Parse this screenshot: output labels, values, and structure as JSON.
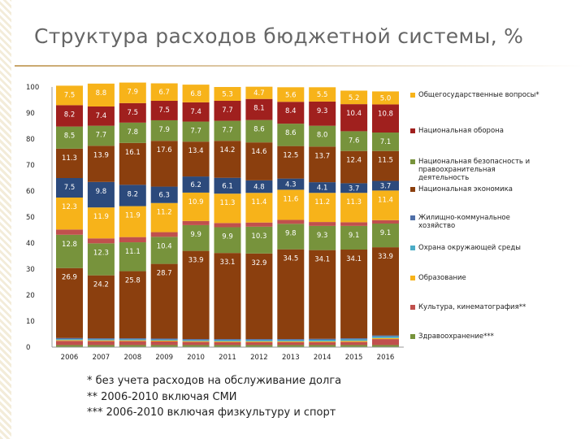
{
  "page": {
    "title": "Структура расходов бюджетной системы, %"
  },
  "chart_data": {
    "type": "bar",
    "stacked": true,
    "title": "Структура расходов бюджетной системы, %",
    "xlabel": "",
    "ylabel": "",
    "ylim": [
      0,
      100
    ],
    "yticks": [
      "0",
      "10",
      "20",
      "30",
      "40",
      "50",
      "60",
      "70",
      "80",
      "90",
      "100"
    ],
    "categories": [
      "2006",
      "2007",
      "2008",
      "2009",
      "2010",
      "2011",
      "2012",
      "2013",
      "2014",
      "2015",
      "2016"
    ],
    "legend_position": "right",
    "series": [
      {
        "name": "Здравоохранение***",
        "color": "#77933c",
        "labels": [
          "",
          "",
          "",
          "",
          "",
          "",
          "",
          "",
          "",
          "",
          ""
        ],
        "values": [
          0.8,
          0.8,
          0.8,
          0.8,
          0.8,
          0.8,
          0.8,
          0.8,
          0.8,
          0.8,
          0.8
        ]
      },
      {
        "name": "Культура, кинематография**",
        "color": "#c0504d",
        "labels": [
          "",
          "",
          "",
          "",
          "",
          "",
          "",
          "",
          "",
          "",
          ""
        ],
        "values": [
          1.6,
          1.5,
          1.5,
          1.4,
          1.2,
          1.1,
          1.1,
          1.1,
          1.1,
          1.2,
          2.3
        ]
      },
      {
        "name": "Образование",
        "color": "#f7b31a",
        "labels": [
          "",
          "",
          "",
          "",
          "",
          "",
          "",
          "",
          "",
          "",
          ""
        ],
        "values": [
          0.3,
          0.3,
          0.3,
          0.3,
          0.3,
          0.3,
          0.3,
          0.3,
          0.3,
          0.4,
          0.4
        ]
      },
      {
        "name": "Охрана окружающей среды",
        "color": "#4bacc6",
        "labels": [
          "",
          "",
          "",
          "",
          "",
          "",
          "",
          "",
          "",
          "",
          ""
        ],
        "values": [
          0.4,
          0.4,
          0.4,
          0.4,
          0.4,
          0.5,
          0.5,
          0.5,
          0.6,
          0.6,
          0.6
        ]
      },
      {
        "name": "Жилищно-коммунальное хозяйство",
        "color": "#4f6fa8",
        "labels": [
          "",
          "",
          "",
          "",
          "",
          "",
          "",
          "",
          "",
          "",
          ""
        ],
        "values": [
          0.4,
          0.4,
          0.4,
          0.4,
          0.4,
          0.4,
          0.4,
          0.4,
          0.4,
          0.4,
          0.4
        ]
      },
      {
        "name": "Социальная политика",
        "color": "#8b3f0e",
        "labels": [
          "26.9",
          "24.2",
          "25.8",
          "28.7",
          "33.9",
          "33.1",
          "32.9",
          "34.5",
          "34.1",
          "34.1",
          "33.9"
        ],
        "values": [
          26.9,
          24.2,
          25.8,
          28.7,
          33.9,
          33.1,
          32.9,
          34.5,
          34.1,
          34.1,
          33.9
        ]
      },
      {
        "name": "Здравоохранение (общ.)",
        "color": "#77933c",
        "labels": [
          "12.8",
          "12.3",
          "11.1",
          "10.4",
          "9.9",
          "9.9",
          "10.3",
          "9.8",
          "9.3",
          "9.1",
          "9.1"
        ],
        "values": [
          12.8,
          12.3,
          11.1,
          10.4,
          9.9,
          9.9,
          10.3,
          9.8,
          9.3,
          9.1,
          9.1
        ]
      },
      {
        "name": "Культура (общ.)",
        "color": "#c0504d",
        "labels": [
          "",
          "",
          "",
          "",
          "",
          "",
          "",
          "",
          "",
          "",
          ""
        ],
        "values": [
          2.0,
          1.9,
          2.0,
          1.8,
          1.6,
          1.6,
          1.6,
          1.5,
          1.5,
          1.4,
          1.3
        ]
      },
      {
        "name": "Образование (общ.)",
        "color": "#f7b31a",
        "labels": [
          "12.3",
          "11.9",
          "11.9",
          "11.2",
          "10.9",
          "11.3",
          "11.4",
          "11.6",
          "11.2",
          "11.3",
          "11.4"
        ],
        "values": [
          12.3,
          11.9,
          11.9,
          11.2,
          10.9,
          11.3,
          11.4,
          11.6,
          11.2,
          11.3,
          11.4
        ]
      },
      {
        "name": "Жилищно-коммунальное хозяйство (общ.)",
        "color": "#2c4a7c",
        "labels": [
          "7.5",
          "9.8",
          "8.2",
          "6.3",
          "6.2",
          "6.1",
          "4.8",
          "4.3",
          "4.1",
          "3.7",
          "3.7"
        ],
        "values": [
          7.5,
          9.8,
          8.2,
          6.3,
          6.2,
          6.1,
          4.8,
          4.3,
          4.1,
          3.7,
          3.7
        ]
      },
      {
        "name": "Национальная экономика",
        "color": "#8b3f0e",
        "labels": [
          "11.3",
          "13.9",
          "16.1",
          "17.6",
          "13.4",
          "14.2",
          "14.6",
          "12.5",
          "13.7",
          "12.4",
          "11.5"
        ],
        "values": [
          11.3,
          13.9,
          16.1,
          17.6,
          13.4,
          14.2,
          14.6,
          12.5,
          13.7,
          12.4,
          11.5
        ]
      },
      {
        "name": "Национальная безопасность и правоохранительная деятельность",
        "color": "#77933c",
        "labels": [
          "8.5",
          "7.7",
          "7.8",
          "7.9",
          "7.7",
          "7.7",
          "8.6",
          "8.6",
          "8.0",
          "7.6",
          "7.1"
        ],
        "values": [
          8.5,
          7.7,
          7.8,
          7.9,
          7.7,
          7.7,
          8.6,
          8.6,
          8.0,
          7.6,
          7.1
        ]
      },
      {
        "name": "Национальная оборона",
        "color": "#a0201e",
        "labels": [
          "8.2",
          "7.4",
          "7.5",
          "7.5",
          "7.4",
          "7.7",
          "8.1",
          "8.4",
          "9.3",
          "10.4",
          "10.8"
        ],
        "values": [
          8.2,
          7.4,
          7.5,
          7.5,
          7.4,
          7.7,
          8.1,
          8.4,
          9.3,
          10.4,
          10.8
        ]
      },
      {
        "name": "Общегосударственные вопросы*",
        "color": "#f7b31a",
        "labels": [
          "7.5",
          "8.8",
          "7.9",
          "6.7",
          "6.8",
          "5.3",
          "4.7",
          "5.6",
          "5.5",
          "5.2",
          "5.0"
        ],
        "values": [
          7.5,
          8.8,
          7.9,
          6.7,
          6.8,
          5.3,
          4.7,
          5.6,
          5.5,
          5.2,
          5.0
        ]
      }
    ],
    "legend": [
      {
        "label": "Общегосударственные вопросы*",
        "color": "#f7b31a"
      },
      {
        "label": "Национальная оборона",
        "color": "#a0201e"
      },
      {
        "label": "Национальная безопасность и правоохранительная деятельность",
        "color": "#77933c"
      },
      {
        "label": "Национальная экономика",
        "color": "#8b3f0e"
      },
      {
        "label": "Жилищно-коммунальное хозяйство",
        "color": "#4f6fa8"
      },
      {
        "label": "Охрана окружающей среды",
        "color": "#4bacc6"
      },
      {
        "label": "Образование",
        "color": "#f7b31a"
      },
      {
        "label": "Культура, кинематография**",
        "color": "#c0504d"
      },
      {
        "label": "Здравоохранение***",
        "color": "#77933c"
      }
    ]
  },
  "footnotes": [
    "* без учета расходов на обслуживание долга",
    "** 2006-2010 включая СМИ",
    "*** 2006-2010 включая физкультуру и спорт"
  ]
}
